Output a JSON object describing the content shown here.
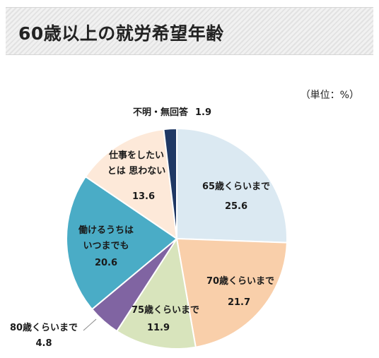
{
  "header": {
    "title": "60歳以上の就労希望年齢"
  },
  "unit": "（単位：%）",
  "chart_data": {
    "type": "pie",
    "title": "60歳以上の就労希望年齢",
    "unit": "（単位：%）",
    "slices": [
      {
        "label": [
          "65歳くらいまで"
        ],
        "value": "25.6",
        "color": "#dbe9f2"
      },
      {
        "label": [
          "70歳くらいまで"
        ],
        "value": "21.7",
        "color": "#f9cfaa"
      },
      {
        "label": [
          "75歳くらいまで"
        ],
        "value": "11.9",
        "color": "#d8e4bc"
      },
      {
        "label": [
          "80歳くらいまで"
        ],
        "value": "4.8",
        "color": "#8064a2"
      },
      {
        "label": [
          "働けるうちは",
          "いつまでも"
        ],
        "value": "20.6",
        "color": "#4aacc6"
      },
      {
        "label": [
          "仕事をしたい",
          "とは 思わない"
        ],
        "value": "13.6",
        "color": "#fde9d9"
      },
      {
        "label": [
          "不明・無回答"
        ],
        "value": "1.9",
        "color": "#1f3864"
      }
    ]
  }
}
